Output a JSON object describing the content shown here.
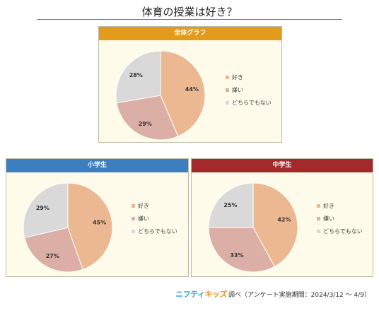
{
  "page_title": "体育の授業は好き？",
  "colors": {
    "like": "#ecb892",
    "dislike": "#dcafa6",
    "neutral": "#d9d9d9",
    "header_all": "#e39b1c",
    "header_elem": "#3b7fc1",
    "header_middle": "#a3292b"
  },
  "chart_data": [
    {
      "type": "pie",
      "title": "全体グラフ",
      "categories": [
        "好き",
        "嫌い",
        "どちらでもない"
      ],
      "values": [
        44,
        29,
        28
      ],
      "data_labels": [
        "44%",
        "29%",
        "28%"
      ],
      "legend": "right"
    },
    {
      "type": "pie",
      "title": "小学生",
      "categories": [
        "好き",
        "嫌い",
        "どちらでもない"
      ],
      "values": [
        45,
        27,
        29
      ],
      "data_labels": [
        "45%",
        "27%",
        "29%"
      ],
      "legend": "right"
    },
    {
      "type": "pie",
      "title": "中学生",
      "categories": [
        "好き",
        "嫌い",
        "どちらでもない"
      ],
      "values": [
        42,
        33,
        25
      ],
      "data_labels": [
        "42%",
        "33%",
        "25%"
      ],
      "legend": "right"
    }
  ],
  "footer": {
    "logo_part1": "ニフティ",
    "logo_part2": "キッズ",
    "text": "調べ（アンケート実施期間：2024/3/12 ～ 4/9）"
  }
}
